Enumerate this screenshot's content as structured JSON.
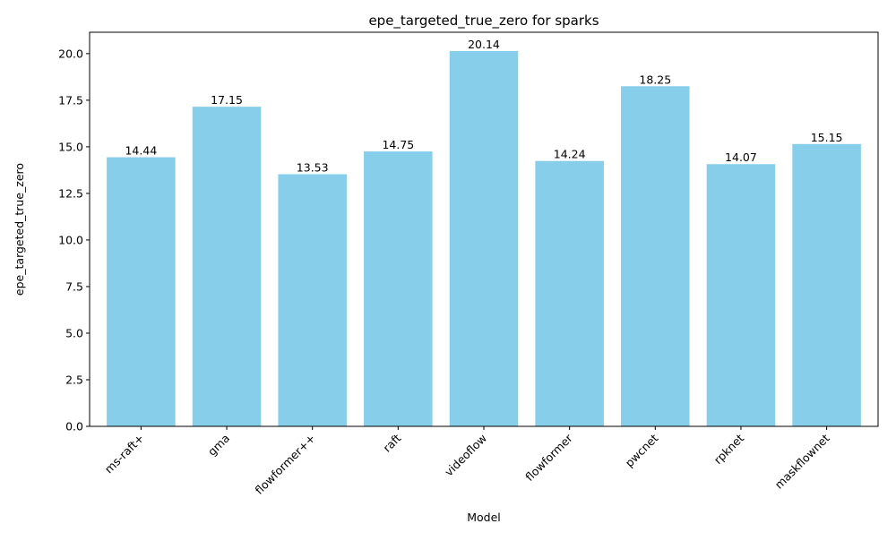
{
  "chart_data": {
    "type": "bar",
    "title": "epe_targeted_true_zero for sparks",
    "xlabel": "Model",
    "ylabel": "epe_targeted_true_zero",
    "categories": [
      "ms-raft+",
      "gma",
      "flowformer++",
      "raft",
      "videoflow",
      "flowformer",
      "pwcnet",
      "rpknet",
      "maskflownet"
    ],
    "values": [
      14.44,
      17.15,
      13.53,
      14.75,
      20.14,
      14.24,
      18.25,
      14.07,
      15.15
    ],
    "value_labels": [
      "14.44",
      "17.15",
      "13.53",
      "14.75",
      "20.14",
      "14.24",
      "18.25",
      "14.07",
      "15.15"
    ],
    "ylim": [
      0,
      21.147
    ],
    "yticks": [
      0,
      2.5,
      5,
      7.5,
      10,
      12.5,
      15,
      17.5,
      20
    ],
    "ytick_labels": [
      "0.0",
      "2.5",
      "5.0",
      "7.5",
      "10.0",
      "12.5",
      "15.0",
      "17.5",
      "20.0"
    ],
    "xtick_rotation_deg": -45,
    "grid": false,
    "legend": "none",
    "bar_color": "#87ceeb"
  }
}
